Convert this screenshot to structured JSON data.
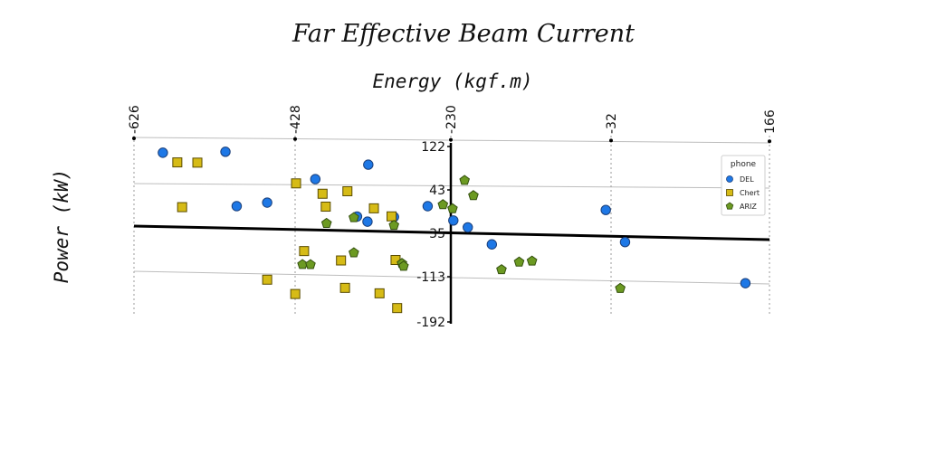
{
  "chart_data": {
    "type": "scatter",
    "title": "Far Effective Beam Current",
    "xlabel": "Energy (kgf.m)",
    "ylabel": "Power (kW)",
    "x_ticks": [
      -626,
      -428,
      -230,
      -32,
      166
    ],
    "y_ticks": [
      122,
      43,
      35,
      -113,
      -192
    ],
    "xlim": [
      -626,
      166
    ],
    "ylim": [
      -192,
      122
    ],
    "legend": {
      "title": "phone",
      "placement": "right"
    },
    "grid": true,
    "series": [
      {
        "name": "DEL",
        "marker": "circle",
        "color": "#1e78e6",
        "points": [
          [
            -590,
            105
          ],
          [
            -512,
            108
          ],
          [
            -498,
            11
          ],
          [
            -460,
            18
          ],
          [
            -400,
            61
          ],
          [
            -334,
            88
          ],
          [
            -348,
            -5
          ],
          [
            -335,
            -14
          ],
          [
            -302,
            -5
          ],
          [
            -260,
            15
          ],
          [
            -228,
            -10
          ],
          [
            -210,
            -22
          ],
          [
            -180,
            -52
          ],
          [
            -38,
            12
          ],
          [
            -14,
            -45
          ],
          [
            136,
            -116
          ]
        ]
      },
      {
        "name": "Chert",
        "marker": "square",
        "color": "#d6bb16",
        "points": [
          [
            -572,
            88
          ],
          [
            -547,
            88
          ],
          [
            -566,
            8
          ],
          [
            -424,
            53
          ],
          [
            -391,
            35
          ],
          [
            -387,
            12
          ],
          [
            -360,
            40
          ],
          [
            -327,
            10
          ],
          [
            -305,
            -4
          ],
          [
            -414,
            -68
          ],
          [
            -368,
            -84
          ],
          [
            -460,
            -120
          ],
          [
            -425,
            -145
          ],
          [
            -363,
            -133
          ],
          [
            -320,
            -142
          ],
          [
            -300,
            -82
          ],
          [
            -298,
            -168
          ]
        ]
      },
      {
        "name": "ARIZ",
        "marker": "pentagon",
        "color": "#6c9a22",
        "points": [
          [
            -214,
            62
          ],
          [
            -203,
            35
          ],
          [
            -241,
            18
          ],
          [
            -229,
            11
          ],
          [
            -352,
            -7
          ],
          [
            -386,
            -18
          ],
          [
            -352,
            -70
          ],
          [
            -416,
            -92
          ],
          [
            -406,
            -92
          ],
          [
            -292,
            -88
          ],
          [
            -290,
            -93
          ],
          [
            -168,
            -97
          ],
          [
            -146,
            -83
          ],
          [
            -130,
            -81
          ],
          [
            -20,
            -128
          ],
          [
            -302,
            -20
          ]
        ]
      }
    ]
  }
}
